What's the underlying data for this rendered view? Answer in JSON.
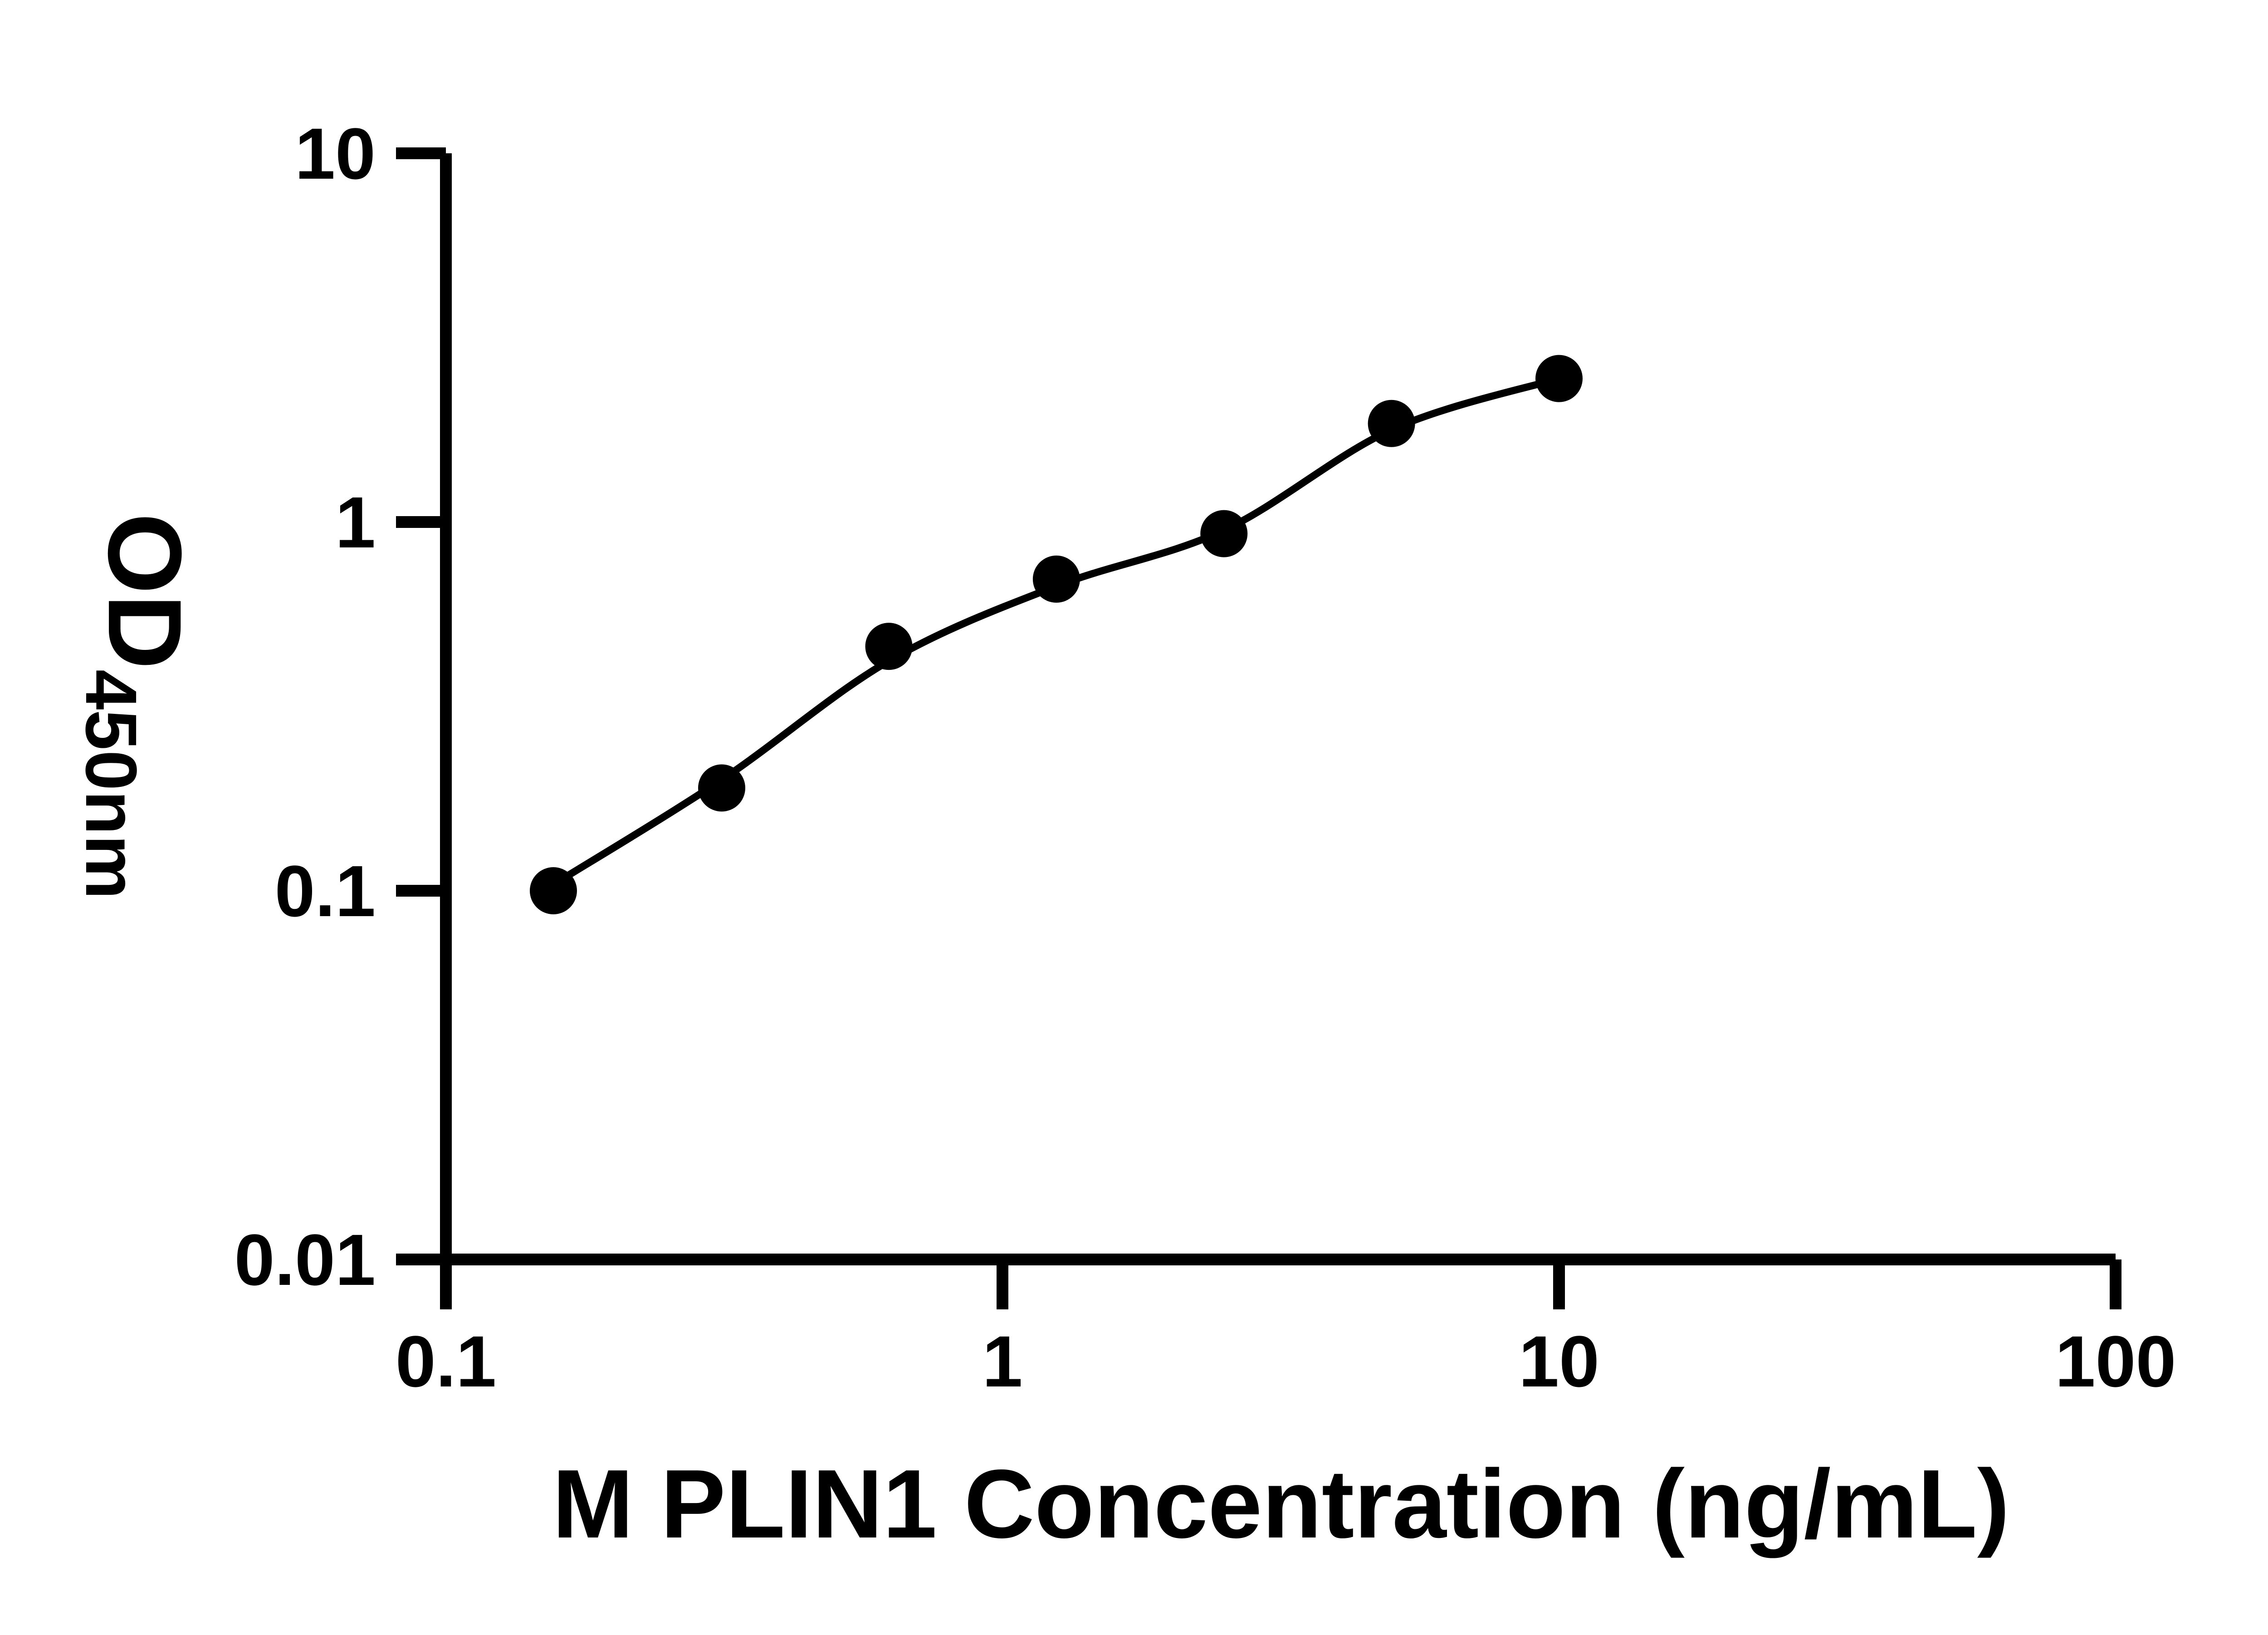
{
  "page": {
    "background": "#ffffff"
  },
  "chart_data": {
    "type": "scatter",
    "title": "",
    "xlabel": "M PLIN1 Concentration (ng/mL)",
    "ylabel": "OD450nm",
    "ylabel_main": "OD",
    "ylabel_sub": "450nm",
    "x_scale": "log",
    "y_scale": "log",
    "xlim": [
      0.1,
      100
    ],
    "ylim": [
      0.01,
      10
    ],
    "x_ticks": [
      "0.1",
      "1",
      "10",
      "100"
    ],
    "y_ticks": [
      "0.01",
      "0.1",
      "1",
      "10"
    ],
    "grid": false,
    "legend": "none",
    "point_color": "#000000",
    "line_color": "#000000",
    "series": [
      {
        "name": "standard-curve-points",
        "marker": "filled-circle",
        "color": "#000000",
        "x": [
          0.156,
          0.313,
          0.625,
          1.25,
          2.5,
          5,
          10
        ],
        "y": [
          0.1,
          0.19,
          0.46,
          0.7,
          0.93,
          1.85,
          2.45
        ]
      }
    ],
    "fit_curve": {
      "name": "fitted-standard-curve",
      "color": "#000000",
      "x": [
        0.156,
        0.313,
        0.625,
        1.25,
        2.5,
        5,
        10
      ],
      "y": [
        0.104,
        0.2,
        0.42,
        0.67,
        0.95,
        1.78,
        2.45
      ]
    }
  }
}
